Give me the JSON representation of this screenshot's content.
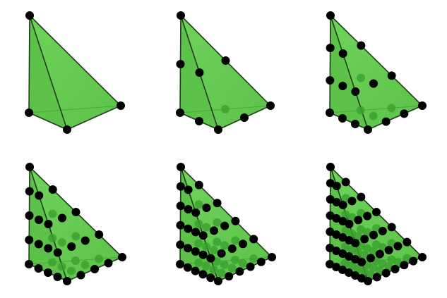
{
  "colors": {
    "background": "#ffffff",
    "face_light": "#6fd35a",
    "face_mid": "#5cc24a",
    "face_dark": "#47a838",
    "edge": "#1f3d1a",
    "node": "#000000",
    "node_hidden": "#3aa02e"
  },
  "panels": [
    {
      "order": 1
    },
    {
      "order": 2
    },
    {
      "order": 3
    },
    {
      "order": 4
    },
    {
      "order": 5
    },
    {
      "order": 6
    }
  ]
}
